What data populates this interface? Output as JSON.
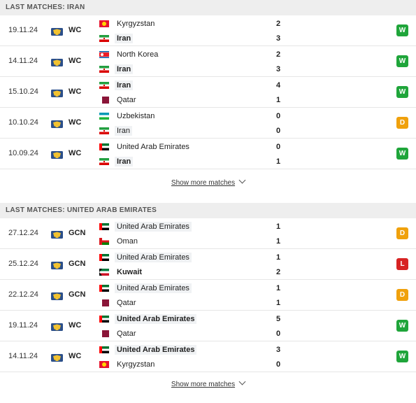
{
  "sections": [
    {
      "header": "LAST MATCHES: IRAN",
      "show_more": "Show more matches",
      "matches": [
        {
          "date": "19.11.24",
          "comp": "WC",
          "home": {
            "name": "Kyrgyzstan",
            "flag": "kg",
            "bold": false,
            "hl": false
          },
          "away": {
            "name": "Iran",
            "flag": "ir",
            "bold": true,
            "hl": true
          },
          "home_score": "2",
          "away_score": "3",
          "result": "W"
        },
        {
          "date": "14.11.24",
          "comp": "WC",
          "home": {
            "name": "North Korea",
            "flag": "kp",
            "bold": false,
            "hl": false
          },
          "away": {
            "name": "Iran",
            "flag": "ir",
            "bold": true,
            "hl": true
          },
          "home_score": "2",
          "away_score": "3",
          "result": "W"
        },
        {
          "date": "15.10.24",
          "comp": "WC",
          "home": {
            "name": "Iran",
            "flag": "ir",
            "bold": true,
            "hl": true
          },
          "away": {
            "name": "Qatar",
            "flag": "qa",
            "bold": false,
            "hl": false
          },
          "home_score": "4",
          "away_score": "1",
          "result": "W"
        },
        {
          "date": "10.10.24",
          "comp": "WC",
          "home": {
            "name": "Uzbekistan",
            "flag": "uz",
            "bold": false,
            "hl": false
          },
          "away": {
            "name": "Iran",
            "flag": "ir",
            "bold": false,
            "hl": true
          },
          "home_score": "0",
          "away_score": "0",
          "result": "D"
        },
        {
          "date": "10.09.24",
          "comp": "WC",
          "home": {
            "name": "United Arab Emirates",
            "flag": "ae",
            "bold": false,
            "hl": false
          },
          "away": {
            "name": "Iran",
            "flag": "ir",
            "bold": true,
            "hl": true
          },
          "home_score": "0",
          "away_score": "1",
          "result": "W"
        }
      ]
    },
    {
      "header": "LAST MATCHES: UNITED ARAB EMIRATES",
      "show_more": "Show more matches",
      "matches": [
        {
          "date": "27.12.24",
          "comp": "GCN",
          "home": {
            "name": "United Arab Emirates",
            "flag": "ae",
            "bold": false,
            "hl": true
          },
          "away": {
            "name": "Oman",
            "flag": "om",
            "bold": false,
            "hl": false
          },
          "home_score": "1",
          "away_score": "1",
          "result": "D"
        },
        {
          "date": "25.12.24",
          "comp": "GCN",
          "home": {
            "name": "United Arab Emirates",
            "flag": "ae",
            "bold": false,
            "hl": true
          },
          "away": {
            "name": "Kuwait",
            "flag": "kw",
            "bold": true,
            "hl": false
          },
          "home_score": "1",
          "away_score": "2",
          "result": "L"
        },
        {
          "date": "22.12.24",
          "comp": "GCN",
          "home": {
            "name": "United Arab Emirates",
            "flag": "ae",
            "bold": false,
            "hl": true
          },
          "away": {
            "name": "Qatar",
            "flag": "qa",
            "bold": false,
            "hl": false
          },
          "home_score": "1",
          "away_score": "1",
          "result": "D"
        },
        {
          "date": "19.11.24",
          "comp": "WC",
          "home": {
            "name": "United Arab Emirates",
            "flag": "ae",
            "bold": true,
            "hl": true
          },
          "away": {
            "name": "Qatar",
            "flag": "qa",
            "bold": false,
            "hl": false
          },
          "home_score": "5",
          "away_score": "0",
          "result": "W"
        },
        {
          "date": "14.11.24",
          "comp": "WC",
          "home": {
            "name": "United Arab Emirates",
            "flag": "ae",
            "bold": true,
            "hl": true
          },
          "away": {
            "name": "Kyrgyzstan",
            "flag": "kg",
            "bold": false,
            "hl": false
          },
          "home_score": "3",
          "away_score": "0",
          "result": "W"
        }
      ]
    }
  ],
  "icons": {
    "competition": "world-trophy-icon",
    "show_more": "chevron-down-icon"
  },
  "colors": {
    "win": "#1fa53a",
    "draw": "#f0a10c",
    "loss": "#d72323",
    "header_bg": "#eeeeee"
  }
}
